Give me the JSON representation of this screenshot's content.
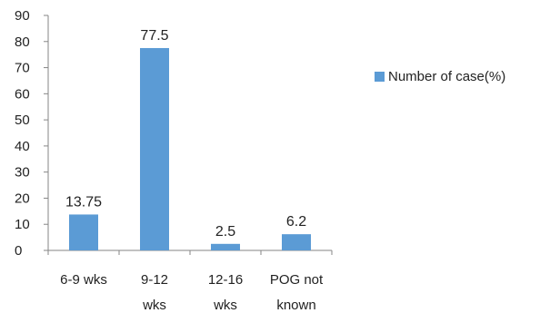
{
  "chart_data": {
    "type": "bar",
    "categories": [
      [
        "6-9 wks"
      ],
      [
        "9-12",
        "wks"
      ],
      [
        "12-16",
        "wks"
      ],
      [
        "POG not",
        "known"
      ]
    ],
    "series": [
      {
        "name": "Number of case(%)",
        "values": [
          13.75,
          77.5,
          2.5,
          6.2
        ]
      }
    ],
    "data_labels": [
      "13.75",
      "77.5",
      "2.5",
      "6.2"
    ],
    "yticks": [
      0,
      10,
      20,
      30,
      40,
      50,
      60,
      70,
      80,
      90
    ],
    "ylim": [
      0,
      90
    ],
    "grid": false,
    "legend_position": "right",
    "bar_color": "#5b9bd5",
    "axis_color": "#868686"
  }
}
